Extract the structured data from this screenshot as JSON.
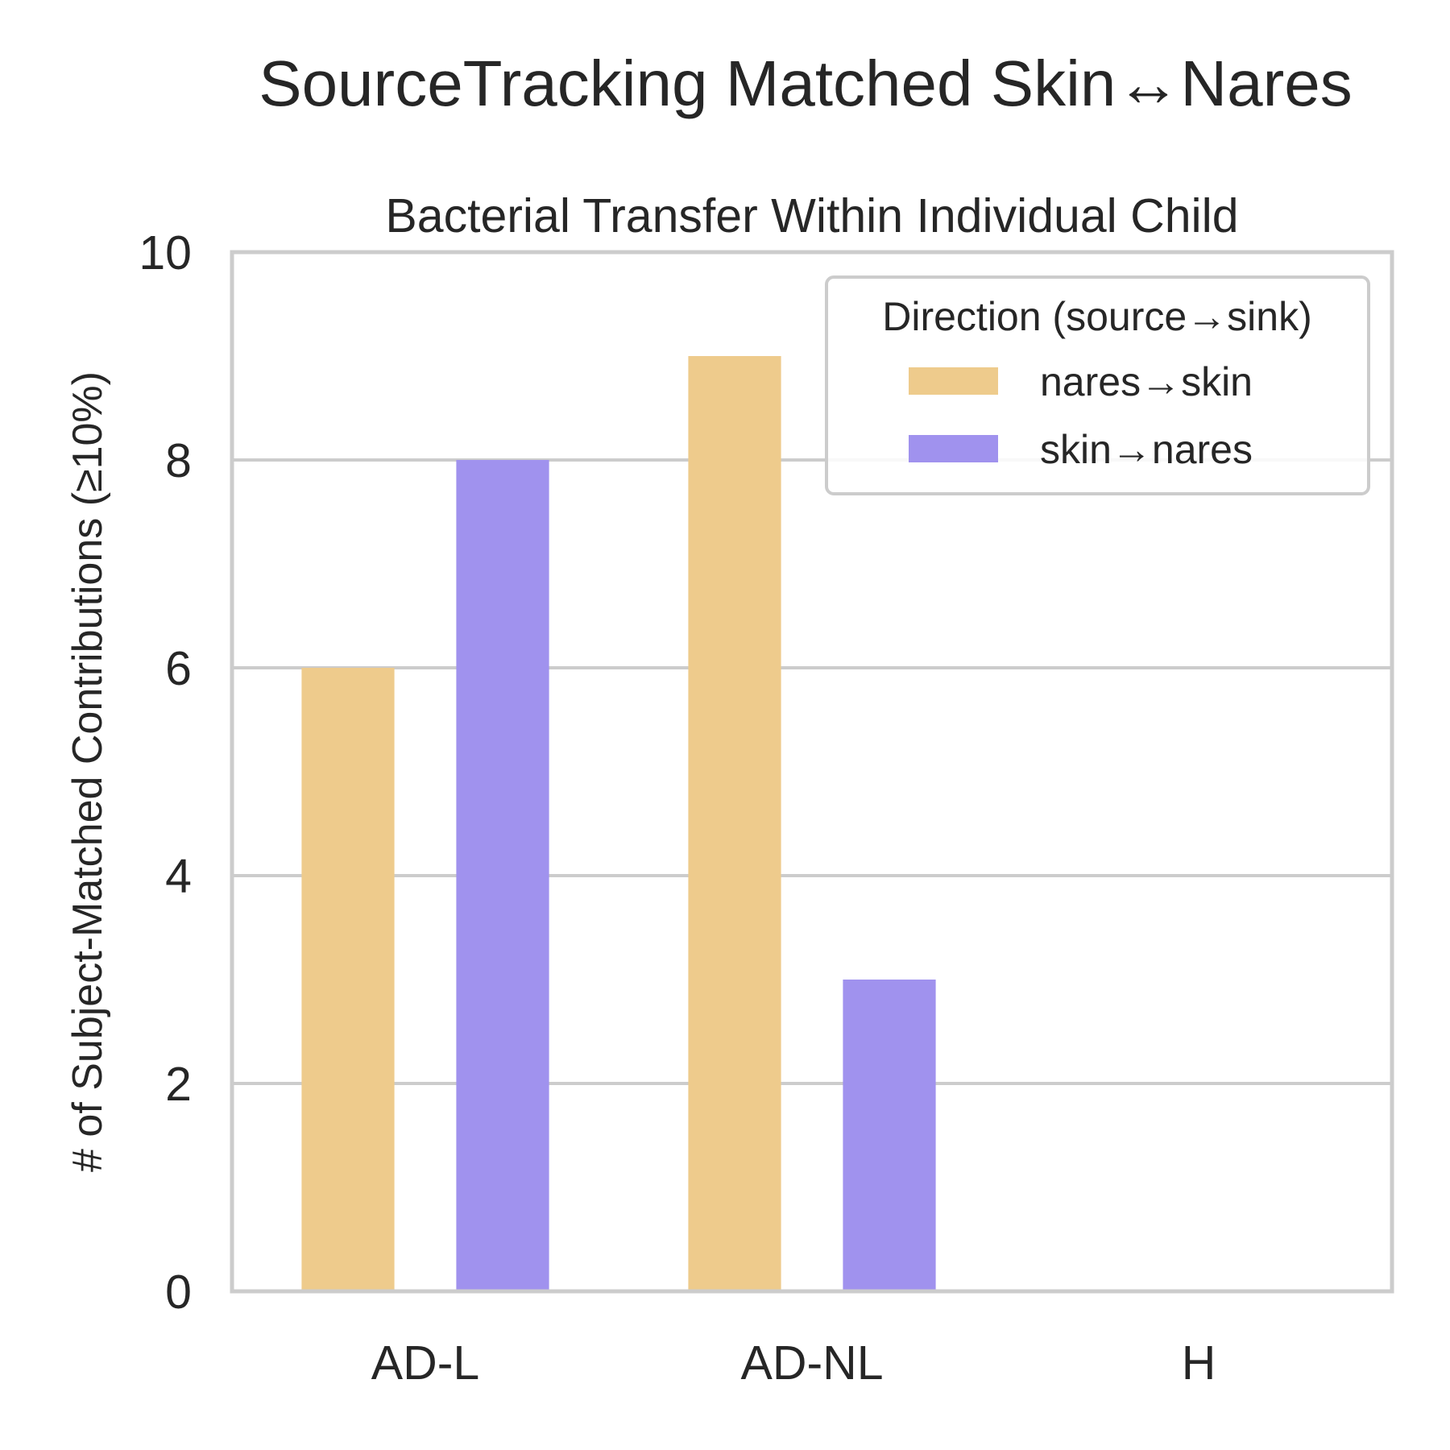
{
  "chart_data": {
    "type": "bar",
    "suptitle": "SourceTracking Matched Skin↔Nares",
    "title": "Bacterial Transfer Within Individual Child",
    "ylabel": "# of Subject-Matched Contributions (≥10%)",
    "xlabel": "",
    "categories": [
      "AD-L",
      "AD-NL",
      "H"
    ],
    "series": [
      {
        "name": "nares→skin",
        "color": "#eecb8c",
        "values": [
          6,
          9,
          0
        ]
      },
      {
        "name": "skin→nares",
        "color": "#a092ee",
        "values": [
          8,
          3,
          0
        ]
      }
    ],
    "ylim": [
      0,
      10
    ],
    "yticks": [
      0,
      2,
      4,
      6,
      8,
      10
    ],
    "grid": true,
    "legend": {
      "title": "Direction (source→sink)",
      "placement": "top-right"
    }
  }
}
